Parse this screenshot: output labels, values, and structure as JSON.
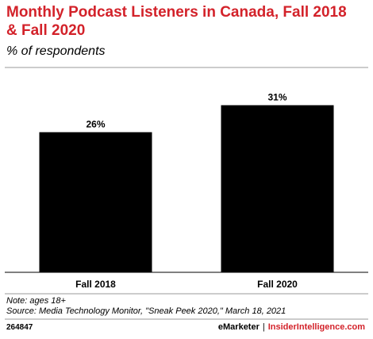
{
  "header": {
    "title": "Monthly Podcast Listeners in Canada, Fall 2018 & Fall 2020",
    "subtitle": "% of respondents"
  },
  "chart_data": {
    "type": "bar",
    "title": "Monthly Podcast Listeners in Canada, Fall 2018 & Fall 2020",
    "subtitle": "% of respondents",
    "categories": [
      "Fall 2018",
      "Fall 2020"
    ],
    "values": [
      26,
      31
    ],
    "data_labels": [
      "26%",
      "31%"
    ],
    "xlabel": "",
    "ylabel": "",
    "ylim": [
      0,
      38
    ],
    "grid": false,
    "legend": "none",
    "bar_color": "#000000"
  },
  "footer": {
    "note": "Note: ages 18+",
    "source": "Source: Media Technology Monitor, \"Sneak Peek 2020,\" March 18, 2021",
    "chart_id": "264847",
    "brand_left": "eMarketer",
    "separator": "|",
    "brand_right": "InsiderIntelligence.com"
  },
  "colors": {
    "title": "#d3222a",
    "brand_accent": "#d3222a",
    "bars": "#000000",
    "rules": "#999999"
  }
}
